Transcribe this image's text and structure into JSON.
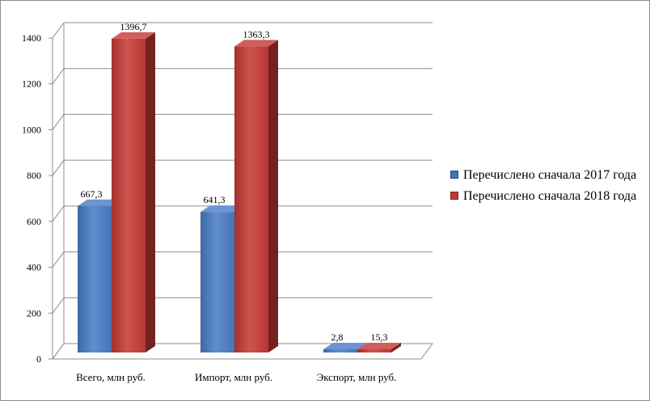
{
  "chart_data": {
    "type": "bar",
    "categories": [
      "Всего, млн руб.",
      "Импорт, млн руб.",
      "Экспорт, млн руб."
    ],
    "series": [
      {
        "name": "Перечислено сначала 2017 года",
        "color": "#4a7fc8",
        "values": [
          667.3,
          641.3,
          2.8
        ],
        "labels": [
          "667,3",
          "641,3",
          "2,8"
        ]
      },
      {
        "name": "Перечислено сначала 2018 года",
        "color": "#c83b37",
        "values": [
          1396.7,
          1363.3,
          15.3
        ],
        "labels": [
          "1396,7",
          "1363,3",
          "15,3"
        ]
      }
    ],
    "yticks": [
      0,
      200,
      400,
      600,
      800,
      1000,
      1200,
      1400
    ],
    "ylim": [
      0,
      1400
    ],
    "legend_position": "right",
    "grid": true
  }
}
